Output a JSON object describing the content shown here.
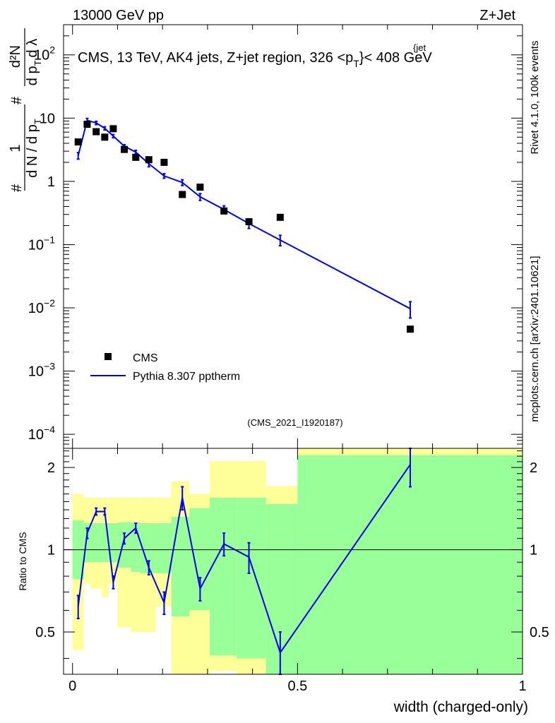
{
  "header": {
    "left": "13000 GeV pp",
    "right": "Z+Jet"
  },
  "side_labels": {
    "rivet": "Rivet 4.1.0,  100k events",
    "mcplots": "mcplots.cern.ch [arXiv:2401.10621]"
  },
  "colors": {
    "mc": "#0000e6",
    "data": "#000000",
    "band_inner": "#99ff99",
    "band_outer": "#ffff99",
    "watermark": "#9a9a9a"
  },
  "chart_data": [
    {
      "type": "scatter",
      "name": "main",
      "title_main": "CMS, 13 TeV, AK4 jets, Z+jet region, 326 <p",
      "title_sup": "{jet",
      "title_sub": "T",
      "title_end": "}< 408 GeV",
      "ylabel_top": "d²N",
      "ylabel_mid1": "#",
      "ylabel_mid2": "d p",
      "ylabel_mid2_sub": "T",
      "ylabel_mid3": "d λ",
      "ylabel_frac_num": "1",
      "ylabel_frac_den": "d N / d p",
      "ylabel_frac_den_sub": "T",
      "ylabel_hash": "#",
      "yscale": "log",
      "ylim": [
        6e-05,
        300
      ],
      "xlim": [
        -0.02,
        1.0
      ],
      "ytick_labels": [
        {
          "v": 100,
          "base": "10",
          "exp": "2"
        },
        {
          "v": 10,
          "base": "10",
          "exp": ""
        },
        {
          "v": 1,
          "base": "1",
          "exp": ""
        },
        {
          "v": 0.1,
          "base": "10",
          "exp": "−1"
        },
        {
          "v": 0.01,
          "base": "10",
          "exp": "−2"
        },
        {
          "v": 0.001,
          "base": "10",
          "exp": "−3"
        },
        {
          "v": 0.0001,
          "base": "10",
          "exp": "−4"
        }
      ],
      "legend": [
        {
          "label": "CMS",
          "kind": "marker"
        },
        {
          "label": "Pythia 8.307 pptherm",
          "kind": "line"
        }
      ],
      "legend_position": "lower-left",
      "watermark": "(CMS_2021_I1920187)",
      "data_points": [
        {
          "x": 0.0125,
          "y": 4.2
        },
        {
          "x": 0.0325,
          "y": 8.0
        },
        {
          "x": 0.0525,
          "y": 6.1
        },
        {
          "x": 0.0715,
          "y": 5.0
        },
        {
          "x": 0.0905,
          "y": 6.8
        },
        {
          "x": 0.115,
          "y": 3.2
        },
        {
          "x": 0.1405,
          "y": 2.4
        },
        {
          "x": 0.1695,
          "y": 2.2
        },
        {
          "x": 0.2035,
          "y": 2.0
        },
        {
          "x": 0.244,
          "y": 0.62
        },
        {
          "x": 0.2835,
          "y": 0.81
        },
        {
          "x": 0.3365,
          "y": 0.34
        },
        {
          "x": 0.392,
          "y": 0.23
        },
        {
          "x": 0.4615,
          "y": 0.27
        },
        {
          "x": 0.7505,
          "y": 0.0046
        }
      ],
      "mc_points": [
        {
          "x": 0.0125,
          "y": 2.55,
          "err": 0.3
        },
        {
          "x": 0.0325,
          "y": 9.2,
          "err": 0.7
        },
        {
          "x": 0.0525,
          "y": 8.4,
          "err": 0.5
        },
        {
          "x": 0.0715,
          "y": 6.9,
          "err": 0.4
        },
        {
          "x": 0.0905,
          "y": 5.2,
          "err": 0.3
        },
        {
          "x": 0.115,
          "y": 3.6,
          "err": 0.2
        },
        {
          "x": 0.1405,
          "y": 2.9,
          "err": 0.2
        },
        {
          "x": 0.1695,
          "y": 1.9,
          "err": 0.2
        },
        {
          "x": 0.2035,
          "y": 1.22,
          "err": 0.1
        },
        {
          "x": 0.244,
          "y": 0.96,
          "err": 0.1
        },
        {
          "x": 0.2835,
          "y": 0.57,
          "err": 0.07
        },
        {
          "x": 0.3365,
          "y": 0.36,
          "err": 0.05
        },
        {
          "x": 0.392,
          "y": 0.215,
          "err": 0.035
        },
        {
          "x": 0.4615,
          "y": 0.118,
          "err": 0.022
        },
        {
          "x": 0.7505,
          "y": 0.0097,
          "err": 0.0028
        }
      ]
    },
    {
      "type": "line",
      "name": "ratio",
      "ylabel": "Ratio to CMS",
      "ylim": [
        0.35,
        2.35
      ],
      "xlim": [
        -0.02,
        1.0
      ],
      "yticks": [
        0.5,
        1,
        2
      ],
      "ytick_labels": [
        "0.5",
        "1",
        "2"
      ],
      "xticks": [
        0,
        0.5,
        1
      ],
      "xtick_labels": [
        "0",
        "0.5",
        "1"
      ],
      "xlabel": "width (charged-only)",
      "ratio_points": [
        {
          "x": 0.0125,
          "y": 0.62,
          "err": 0.06
        },
        {
          "x": 0.0325,
          "y": 1.15,
          "err": 0.05
        },
        {
          "x": 0.0525,
          "y": 1.38,
          "err": 0.04
        },
        {
          "x": 0.0715,
          "y": 1.38,
          "err": 0.04
        },
        {
          "x": 0.0905,
          "y": 0.76,
          "err": 0.04
        },
        {
          "x": 0.115,
          "y": 1.1,
          "err": 0.05
        },
        {
          "x": 0.1405,
          "y": 1.2,
          "err": 0.05
        },
        {
          "x": 0.1695,
          "y": 0.86,
          "err": 0.05
        },
        {
          "x": 0.2035,
          "y": 0.64,
          "err": 0.06
        },
        {
          "x": 0.244,
          "y": 1.55,
          "err": 0.15
        },
        {
          "x": 0.2835,
          "y": 0.72,
          "err": 0.07
        },
        {
          "x": 0.3365,
          "y": 1.05,
          "err": 0.1
        },
        {
          "x": 0.392,
          "y": 0.94,
          "err": 0.12
        },
        {
          "x": 0.4615,
          "y": 0.42,
          "err": 0.08
        },
        {
          "x": 0.7505,
          "y": 2.05,
          "err": 0.35
        }
      ],
      "bands": [
        {
          "x0": 0.0,
          "x1": 0.025,
          "in_lo": 0.78,
          "in_hi": 1.28,
          "out_lo": 0.43,
          "out_hi": 1.6
        },
        {
          "x0": 0.025,
          "x1": 0.04,
          "in_lo": 0.9,
          "in_hi": 1.25,
          "out_lo": 0.75,
          "out_hi": 1.55
        },
        {
          "x0": 0.04,
          "x1": 0.065,
          "in_lo": 0.9,
          "in_hi": 1.25,
          "out_lo": 0.72,
          "out_hi": 1.55
        },
        {
          "x0": 0.065,
          "x1": 0.08,
          "in_lo": 0.9,
          "in_hi": 1.25,
          "out_lo": 0.67,
          "out_hi": 1.55
        },
        {
          "x0": 0.08,
          "x1": 0.1,
          "in_lo": 0.9,
          "in_hi": 1.25,
          "out_lo": 0.75,
          "out_hi": 1.55
        },
        {
          "x0": 0.1,
          "x1": 0.13,
          "in_lo": 0.86,
          "in_hi": 1.26,
          "out_lo": 0.52,
          "out_hi": 1.55
        },
        {
          "x0": 0.13,
          "x1": 0.15,
          "in_lo": 0.83,
          "in_hi": 1.26,
          "out_lo": 0.5,
          "out_hi": 1.55
        },
        {
          "x0": 0.15,
          "x1": 0.185,
          "in_lo": 0.82,
          "in_hi": 1.25,
          "out_lo": 0.5,
          "out_hi": 1.55
        },
        {
          "x0": 0.185,
          "x1": 0.22,
          "in_lo": 0.82,
          "in_hi": 1.25,
          "out_lo": 0.62,
          "out_hi": 1.55
        },
        {
          "x0": 0.22,
          "x1": 0.26,
          "in_lo": 0.57,
          "in_hi": 1.32,
          "out_lo": 0.35,
          "out_hi": 1.78
        },
        {
          "x0": 0.26,
          "x1": 0.305,
          "in_lo": 0.6,
          "in_hi": 1.42,
          "out_lo": 0.35,
          "out_hi": 1.6
        },
        {
          "x0": 0.305,
          "x1": 0.365,
          "in_lo": 0.41,
          "in_hi": 1.55,
          "out_lo": 0.36,
          "out_hi": 2.11
        },
        {
          "x0": 0.365,
          "x1": 0.43,
          "in_lo": 0.4,
          "in_hi": 1.55,
          "out_lo": 0.35,
          "out_hi": 2.11
        },
        {
          "x0": 0.43,
          "x1": 0.5,
          "in_lo": 0.35,
          "in_hi": 1.47,
          "out_lo": 0.35,
          "out_hi": 1.71
        },
        {
          "x0": 0.5,
          "x1": 1.0,
          "in_lo": 0.35,
          "in_hi": 2.22,
          "out_lo": 0.35,
          "out_hi": 2.35
        }
      ]
    }
  ]
}
